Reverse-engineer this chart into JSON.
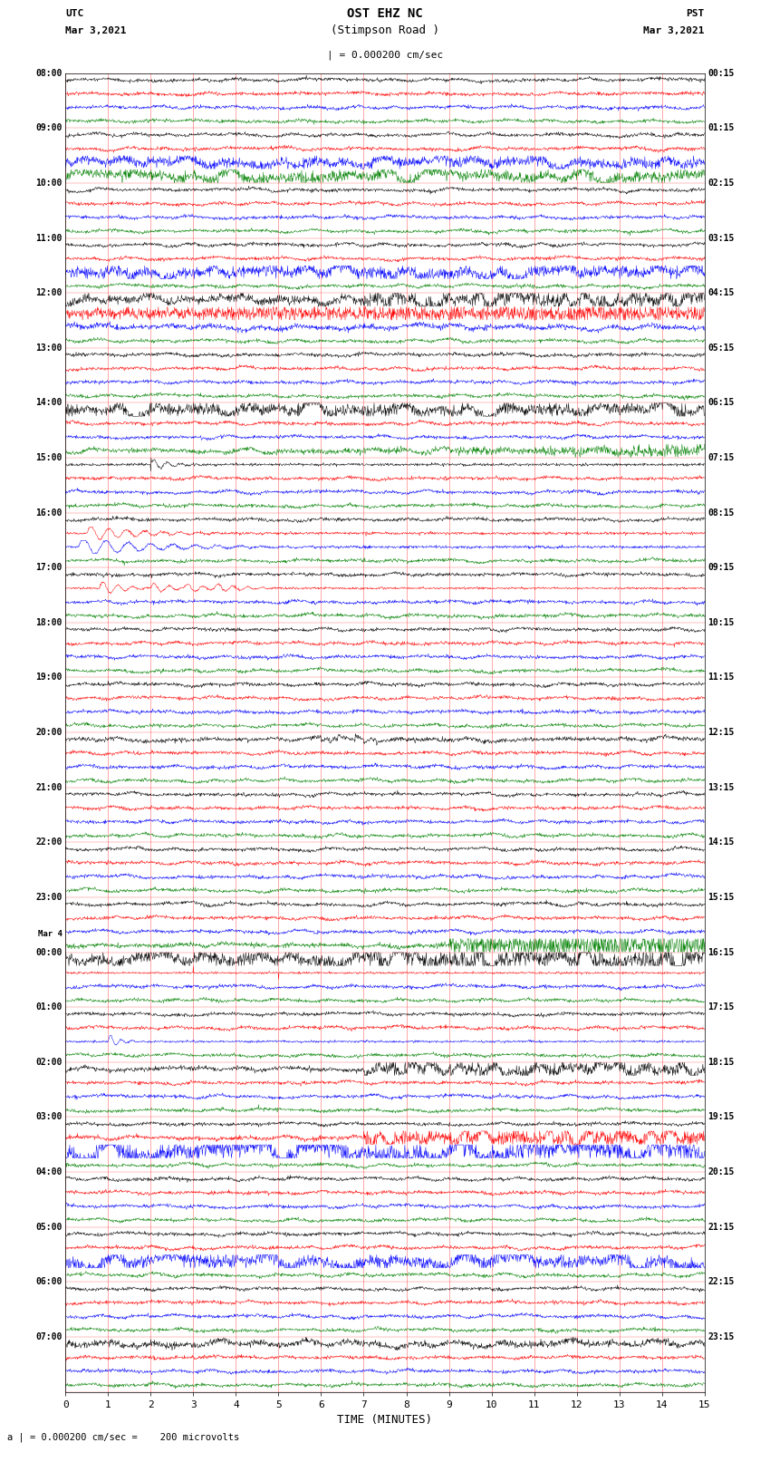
{
  "title_line1": "OST EHZ NC",
  "title_line2": "(Stimpson Road )",
  "scale_label": "| = 0.000200 cm/sec",
  "footer_label": "a | = 0.000200 cm/sec =    200 microvolts",
  "utc_label": "UTC",
  "utc_date": "Mar 3,2021",
  "pst_label": "PST",
  "pst_date": "Mar 3,2021",
  "xlabel": "TIME (MINUTES)",
  "bg_color": "#ffffff",
  "trace_colors": [
    "#000000",
    "#ff0000",
    "#0000ff",
    "#008000"
  ],
  "left_times": [
    "08:00",
    "09:00",
    "10:00",
    "11:00",
    "12:00",
    "13:00",
    "14:00",
    "15:00",
    "16:00",
    "17:00",
    "18:00",
    "19:00",
    "20:00",
    "21:00",
    "22:00",
    "23:00",
    "Mar 4",
    "00:00",
    "01:00",
    "02:00",
    "03:00",
    "04:00",
    "05:00",
    "06:00",
    "07:00"
  ],
  "left_time_rows": [
    0,
    4,
    8,
    12,
    16,
    20,
    24,
    28,
    32,
    36,
    40,
    44,
    48,
    52,
    56,
    60,
    63,
    64,
    68,
    72,
    76,
    80,
    84,
    88,
    92
  ],
  "right_times": [
    "00:15",
    "01:15",
    "02:15",
    "03:15",
    "04:15",
    "05:15",
    "06:15",
    "07:15",
    "08:15",
    "09:15",
    "10:15",
    "11:15",
    "12:15",
    "13:15",
    "14:15",
    "15:15",
    "16:15",
    "17:15",
    "18:15",
    "19:15",
    "20:15",
    "21:15",
    "22:15",
    "23:15"
  ],
  "right_time_rows": [
    0,
    4,
    8,
    12,
    16,
    20,
    24,
    28,
    32,
    36,
    40,
    44,
    48,
    52,
    56,
    60,
    64,
    68,
    72,
    76,
    80,
    84,
    88,
    92
  ],
  "n_rows": 96,
  "n_cols": 4,
  "figsize": [
    8.5,
    16.13
  ],
  "dpi": 100,
  "grid_color": "#ff0000",
  "vgrid_color": "#ff0000"
}
